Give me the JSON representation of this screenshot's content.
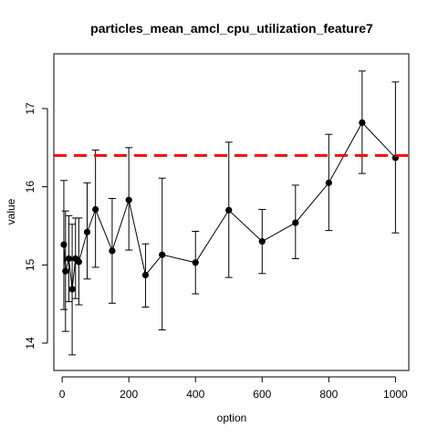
{
  "chart_data": {
    "type": "line",
    "title": "particles_mean_amcl_cpu_utilization_feature7",
    "xlabel": "option",
    "ylabel": "value",
    "xlim": [
      -25,
      1040
    ],
    "ylim": [
      13.65,
      17.7
    ],
    "x_ticks": [
      0,
      200,
      400,
      600,
      800,
      1000
    ],
    "y_ticks": [
      14,
      15,
      16,
      17
    ],
    "reference_line": {
      "y": 16.4,
      "color": "#ff0000",
      "style": "dashed"
    },
    "series": [
      {
        "x": [
          5,
          10,
          20,
          30,
          40,
          50,
          75,
          100,
          150,
          200,
          250,
          300,
          400,
          500,
          600,
          700,
          800,
          900,
          1000
        ],
        "y": [
          15.26,
          14.92,
          15.08,
          14.69,
          15.08,
          15.04,
          15.42,
          15.71,
          15.18,
          15.83,
          14.87,
          15.13,
          15.03,
          15.7,
          15.3,
          15.54,
          16.05,
          16.82,
          16.37
        ],
        "lower": [
          14.43,
          14.15,
          14.53,
          13.85,
          14.57,
          14.49,
          14.82,
          14.97,
          14.51,
          15.19,
          14.46,
          14.17,
          14.63,
          14.84,
          14.89,
          15.08,
          15.44,
          16.17,
          15.41
        ],
        "upper": [
          16.08,
          15.69,
          15.63,
          15.52,
          15.6,
          15.6,
          16.05,
          16.47,
          15.85,
          16.5,
          15.27,
          16.11,
          15.43,
          16.57,
          15.71,
          16.02,
          16.67,
          17.48,
          17.34
        ]
      }
    ],
    "colors": {
      "line": "#000000",
      "points": "#000000",
      "errorbars": "#000000",
      "reference": "#ff0000"
    },
    "grid": false
  }
}
